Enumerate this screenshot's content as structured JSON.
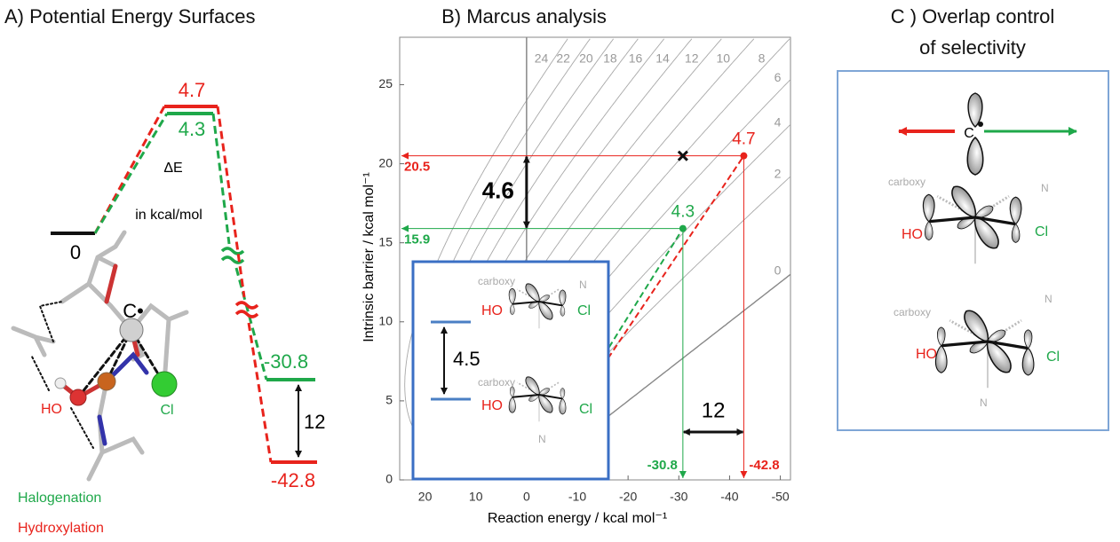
{
  "panel_a": {
    "title": "A) Potential Energy Surfaces",
    "energy_label": "ΔE",
    "energy_unit": "in kcal/mol",
    "levels": {
      "reactant": 0,
      "ts_hydroxylation": 4.7,
      "ts_halogenation": 4.3,
      "product_halogenation": -30.8,
      "product_hydroxylation": -42.8
    },
    "product_gap": 12,
    "atoms": {
      "carbon": "C•",
      "hydroxyl": "HO",
      "chlorine": "Cl"
    }
  },
  "chart_data": {
    "type": "scatter",
    "title": "B) Marcus analysis",
    "xlabel": "Reaction energy / kcal mol⁻¹",
    "ylabel": "Intrinsic barrier / kcal mol⁻¹",
    "xlim": [
      25,
      -52
    ],
    "ylim": [
      0,
      28
    ],
    "xticks": [
      20,
      10,
      0,
      -10,
      -20,
      -30,
      -40,
      -50
    ],
    "yticks": [
      0,
      5,
      10,
      15,
      20,
      25
    ],
    "contour_levels": [
      24,
      22,
      20,
      18,
      16,
      14,
      12,
      10,
      8,
      6,
      4,
      2,
      0
    ],
    "contour_color": "#a8a8a8",
    "series": [
      {
        "name": "Halogenation",
        "color": "#1fa84a",
        "x": [
          -30.8
        ],
        "values": [
          15.9
        ],
        "barrier": 4.3
      },
      {
        "name": "Hydroxylation",
        "color": "#e8231c",
        "x": [
          -42.8
        ],
        "values": [
          20.5
        ],
        "barrier": 4.7
      }
    ],
    "barrier_gap": 4.6,
    "energy_gap": 12,
    "inset": {
      "gap": 4.5,
      "substituent": "carboxy",
      "nitrogen": "N",
      "hydroxyl": "HO",
      "chlorine": "Cl"
    }
  },
  "panel_c": {
    "title": [
      "C ) Overlap control",
      "of selectivity"
    ],
    "carbon": "C",
    "substituent": "carboxy",
    "nitrogen": "N",
    "hydroxyl": "HO",
    "chlorine": "Cl"
  }
}
